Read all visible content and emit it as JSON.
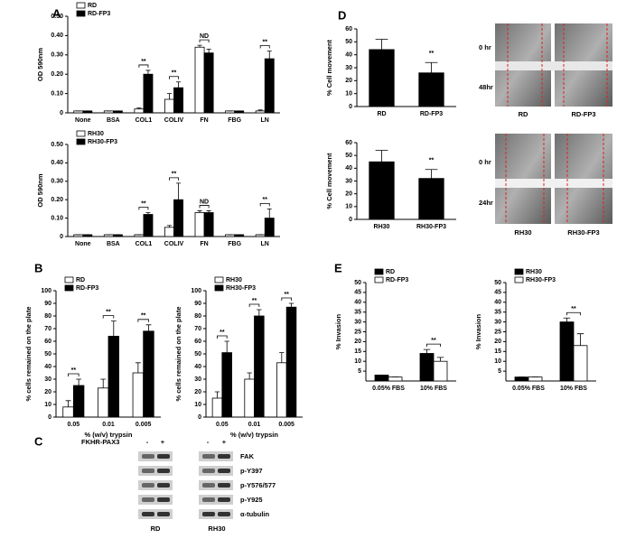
{
  "panels": [
    "A",
    "B",
    "C",
    "D",
    "E"
  ],
  "chart_data": [
    {
      "type": "bar",
      "ylabel": "OD 590nm",
      "legend": "upper left",
      "categories": [
        "None",
        "BSA",
        "COL1",
        "COLIV",
        "FN",
        "FBG",
        "LN"
      ],
      "series": [
        {
          "name": "RD",
          "color": "#ffffff",
          "values": [
            0.01,
            0.01,
            0.02,
            0.07,
            0.34,
            0.01,
            0.01
          ],
          "errors": [
            0,
            0,
            0.005,
            0.03,
            0.01,
            0,
            0.005
          ]
        },
        {
          "name": "RD-FP3",
          "color": "#000000",
          "values": [
            0.01,
            0.01,
            0.2,
            0.13,
            0.31,
            0.01,
            0.28
          ],
          "errors": [
            0,
            0,
            0.02,
            0.03,
            0.02,
            0,
            0.04
          ]
        }
      ],
      "annotations": [
        null,
        null,
        "**",
        "**",
        "ND",
        null,
        "**"
      ],
      "ylim": [
        0,
        0.5
      ],
      "yticks": [
        0,
        {
          "value": 0.1,
          "label": "0.10"
        },
        {
          "value": 0.2,
          "label": "0.20"
        },
        {
          "value": 0.3,
          "label": "0.30"
        },
        {
          "value": 0.4,
          "label": "0.40"
        },
        {
          "value": 0.5,
          "label": "0.50"
        }
      ]
    },
    {
      "type": "bar",
      "ylabel": "OD 590nm",
      "legend": "upper left",
      "categories": [
        "None",
        "BSA",
        "COL1",
        "COLIV",
        "FN",
        "FBG",
        "LN"
      ],
      "series": [
        {
          "name": "RH30",
          "color": "#ffffff",
          "values": [
            0.01,
            0.01,
            0.01,
            0.05,
            0.13,
            0.01,
            0.01
          ],
          "errors": [
            0,
            0,
            0,
            0.01,
            0.01,
            0,
            0
          ]
        },
        {
          "name": "RH30-FP3",
          "color": "#000000",
          "values": [
            0.01,
            0.01,
            0.12,
            0.2,
            0.13,
            0.01,
            0.1
          ],
          "errors": [
            0,
            0,
            0.01,
            0.09,
            0.01,
            0,
            0.05
          ]
        }
      ],
      "annotations": [
        null,
        null,
        "**",
        "**",
        "ND",
        null,
        "**"
      ],
      "ylim": [
        0,
        0.5
      ],
      "yticks": [
        0,
        {
          "value": 0.1,
          "label": "0.10"
        },
        {
          "value": 0.2,
          "label": "0.20"
        },
        {
          "value": 0.3,
          "label": "0.30"
        },
        {
          "value": 0.4,
          "label": "0.40"
        },
        {
          "value": 0.5,
          "label": "0.50"
        }
      ]
    },
    {
      "type": "bar",
      "ylabel": "% cells remained on the plate",
      "xlabel": "% (w/v) trypsin",
      "legend": "upper left",
      "categories": [
        "0.05",
        "0.01",
        "0.005"
      ],
      "series": [
        {
          "name": "RD",
          "color": "#ffffff",
          "values": [
            8,
            23,
            35
          ],
          "errors": [
            5,
            7,
            8
          ]
        },
        {
          "name": "RD-FP3",
          "color": "#000000",
          "values": [
            25,
            64,
            68
          ],
          "errors": [
            5,
            12,
            5
          ]
        }
      ],
      "annotations": [
        "**",
        "**",
        "**"
      ],
      "ylim": [
        0,
        100
      ],
      "yticks": [
        0,
        10,
        20,
        30,
        40,
        50,
        60,
        70,
        80,
        90,
        100
      ]
    },
    {
      "type": "bar",
      "ylabel": "% cells remained on the plate",
      "xlabel": "% (w/v) trypsin",
      "legend": "upper left",
      "categories": [
        "0.05",
        "0.01",
        "0.005"
      ],
      "series": [
        {
          "name": "RH30",
          "color": "#ffffff",
          "values": [
            15,
            30,
            43
          ],
          "errors": [
            5,
            5,
            8
          ]
        },
        {
          "name": "RH30-FP3",
          "color": "#000000",
          "values": [
            51,
            80,
            87
          ],
          "errors": [
            9,
            5,
            3
          ]
        }
      ],
      "annotations": [
        "**",
        "**",
        "**"
      ],
      "ylim": [
        0,
        100
      ],
      "yticks": [
        0,
        10,
        20,
        30,
        40,
        50,
        60,
        70,
        80,
        90,
        100
      ]
    },
    {
      "type": "bar",
      "ylabel": "% Cell movement",
      "categories": [
        "RD",
        "RD-FP3"
      ],
      "color": "#000000",
      "values": [
        44,
        26
      ],
      "errors": [
        8,
        8
      ],
      "annotations": [
        null,
        "**"
      ],
      "ylim": [
        0,
        60
      ],
      "yticks": [
        0,
        10,
        20,
        30,
        40,
        50,
        60
      ]
    },
    {
      "type": "bar",
      "ylabel": "% Cell movement",
      "categories": [
        "RH30",
        "RH30-FP3"
      ],
      "color": "#000000",
      "values": [
        45,
        32
      ],
      "errors": [
        9,
        7
      ],
      "annotations": [
        null,
        "**"
      ],
      "ylim": [
        0,
        60
      ],
      "yticks": [
        0,
        10,
        20,
        30,
        40,
        50,
        60
      ]
    },
    {
      "type": "bar",
      "ylabel": "% Invasion",
      "legend": "upper left",
      "categories": [
        "0.05% FBS",
        "10% FBS"
      ],
      "series": [
        {
          "name": "RD",
          "color": "#000000",
          "values": [
            3,
            14
          ],
          "errors": [
            0,
            2
          ]
        },
        {
          "name": "RD-FP3",
          "color": "#ffffff",
          "values": [
            2,
            10
          ],
          "errors": [
            0,
            2
          ]
        }
      ],
      "annotations": [
        null,
        "**"
      ],
      "ylim": [
        0,
        50
      ],
      "yticks": [
        5,
        10,
        15,
        20,
        25,
        30,
        35,
        40,
        45,
        50
      ]
    },
    {
      "type": "bar",
      "ylabel": "% Invasion",
      "legend": "upper left",
      "categories": [
        "0.05% FBS",
        "10% FBS"
      ],
      "series": [
        {
          "name": "RH30",
          "color": "#000000",
          "values": [
            2,
            30
          ],
          "errors": [
            0,
            2
          ]
        },
        {
          "name": "RH30-FP3",
          "color": "#ffffff",
          "values": [
            2,
            18
          ],
          "errors": [
            0,
            6
          ]
        }
      ],
      "annotations": [
        null,
        "**"
      ],
      "ylim": [
        0,
        50
      ],
      "yticks": [
        5,
        10,
        15,
        20,
        25,
        30,
        35,
        40,
        45,
        50
      ]
    }
  ],
  "images": [
    {
      "rows": [
        "0 hr",
        "48hr"
      ],
      "cols": [
        "RD",
        "RD-FP3"
      ]
    },
    {
      "rows": [
        "0 hr",
        "24hr"
      ],
      "cols": [
        "RH30",
        "RH30-FP3"
      ]
    }
  ],
  "blot": {
    "condition": "FKHR-PAX3",
    "lanes": [
      "-",
      "+",
      "-",
      "+"
    ],
    "proteins": [
      "FAK",
      "p-Y397",
      "p-Y576/577",
      "p-Y925",
      "α-tubulin"
    ],
    "cells": [
      "RD",
      "RH30"
    ]
  }
}
